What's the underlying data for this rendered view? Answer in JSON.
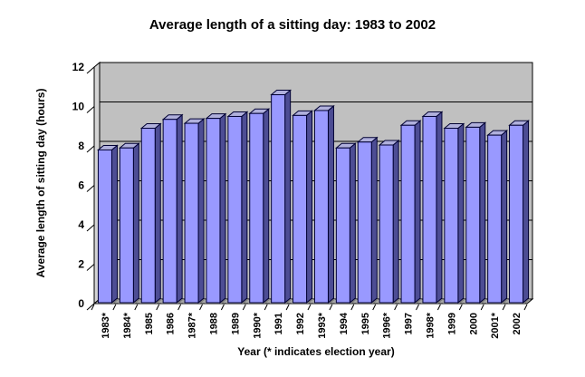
{
  "chart_data": {
    "type": "bar",
    "title": "Average length of a sitting day: 1983 to 2002",
    "xlabel": "Year (* indicates election year)",
    "ylabel": "Average length of sitting day (hours)",
    "categories": [
      "1983*",
      "1984*",
      "1985",
      "1986",
      "1987*",
      "1988",
      "1989",
      "1990*",
      "1991",
      "1992",
      "1993*",
      "1994",
      "1995",
      "1996*",
      "1997",
      "1998*",
      "1999",
      "2000",
      "2001*",
      "2002"
    ],
    "values": [
      7.75,
      7.85,
      8.85,
      9.3,
      9.1,
      9.35,
      9.45,
      9.6,
      10.55,
      9.5,
      9.75,
      7.85,
      8.15,
      8.0,
      9.0,
      9.45,
      8.85,
      8.9,
      8.5,
      9.0
    ],
    "yticks": [
      0,
      2,
      4,
      6,
      8,
      10,
      12
    ],
    "ylim": [
      0,
      12
    ],
    "grid": "horizontal major gridlines every 2",
    "legend": "none",
    "style": "3d-bar",
    "colors": {
      "background": "#FFFFFF",
      "wall": "#C0C0C0",
      "side_wall": "#D4D4D4",
      "floor": "#A6A6A6",
      "bar_base_shadow": "#7E7E7E",
      "bar_front": "#9999FF",
      "bar_side": "#4D4D94",
      "bar_top": "#B0B0DC",
      "bar_outline": "#000033",
      "gridline": "#000000",
      "axis": "#000000",
      "text": "#000000"
    }
  }
}
